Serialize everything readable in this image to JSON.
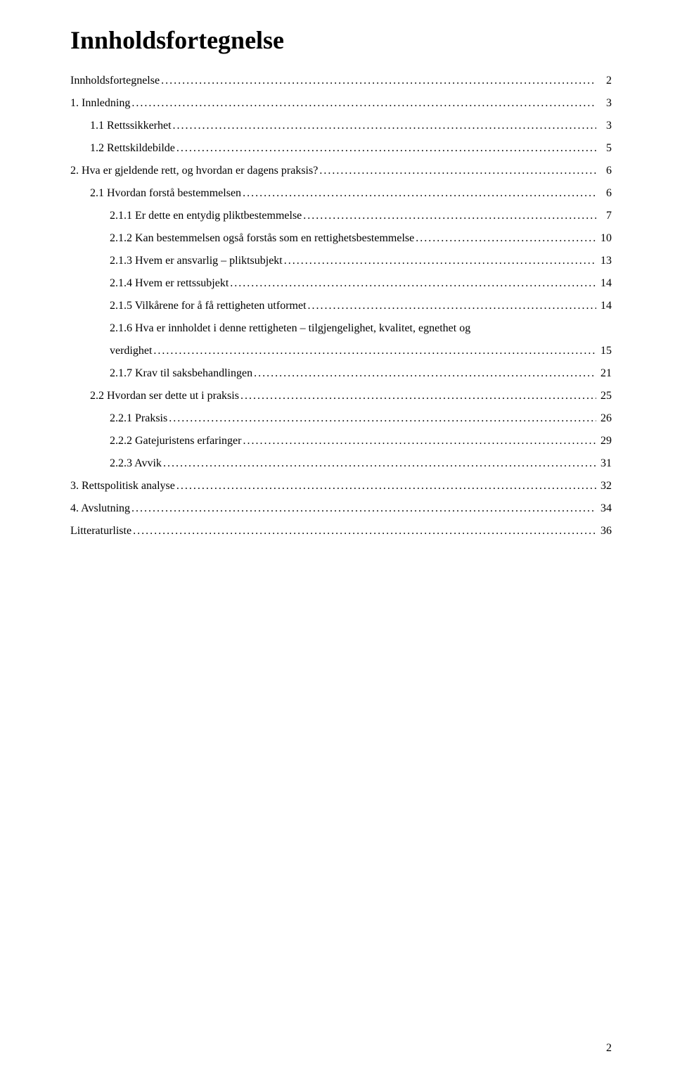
{
  "title": "Innholdsfortegnelse",
  "toc": [
    {
      "indent": 0,
      "label": "Innholdsfortegnelse",
      "page": "2"
    },
    {
      "indent": 0,
      "label": "1. Innledning",
      "page": "3"
    },
    {
      "indent": 1,
      "label": "1.1 Rettssikkerhet",
      "page": "3"
    },
    {
      "indent": 1,
      "label": "1.2 Rettskildebilde",
      "page": "5"
    },
    {
      "indent": 0,
      "label": "2. Hva er gjeldende rett, og hvordan er dagens praksis?",
      "page": "6"
    },
    {
      "indent": 1,
      "label": "2.1 Hvordan forstå bestemmelsen",
      "page": "6"
    },
    {
      "indent": 2,
      "label": "2.1.1 Er dette en entydig pliktbestemmelse",
      "page": "7"
    },
    {
      "indent": 2,
      "label": "2.1.2 Kan bestemmelsen også forstås som en rettighetsbestemmelse",
      "page": "10"
    },
    {
      "indent": 2,
      "label": "2.1.3 Hvem er ansvarlig – pliktsubjekt",
      "page": "13"
    },
    {
      "indent": 2,
      "label": "2.1.4 Hvem er rettssubjekt",
      "page": "14"
    },
    {
      "indent": 2,
      "label": "2.1.5 Vilkårene for å få rettigheten utformet",
      "page": "14"
    },
    {
      "indent": 2,
      "wrap": true,
      "line1": "2.1.6 Hva er innholdet i denne rettigheten – tilgjengelighet, kvalitet, egnethet og",
      "line2": "verdighet",
      "page": "15"
    },
    {
      "indent": 2,
      "label": "2.1.7 Krav til saksbehandlingen",
      "page": "21"
    },
    {
      "indent": 1,
      "label": "2.2 Hvordan ser dette ut i praksis",
      "page": "25"
    },
    {
      "indent": 2,
      "label": "2.2.1 Praksis",
      "page": "26"
    },
    {
      "indent": 2,
      "label": "2.2.2 Gatejuristens erfaringer",
      "page": "29"
    },
    {
      "indent": 2,
      "label": "2.2.3 Avvik",
      "page": "31"
    },
    {
      "indent": 0,
      "label": "3. Rettspolitisk analyse",
      "page": "32"
    },
    {
      "indent": 0,
      "label": "4. Avslutning",
      "page": "34"
    },
    {
      "indent": 0,
      "label": "Litteraturliste",
      "page": "36"
    }
  ],
  "pageNumber": "2"
}
